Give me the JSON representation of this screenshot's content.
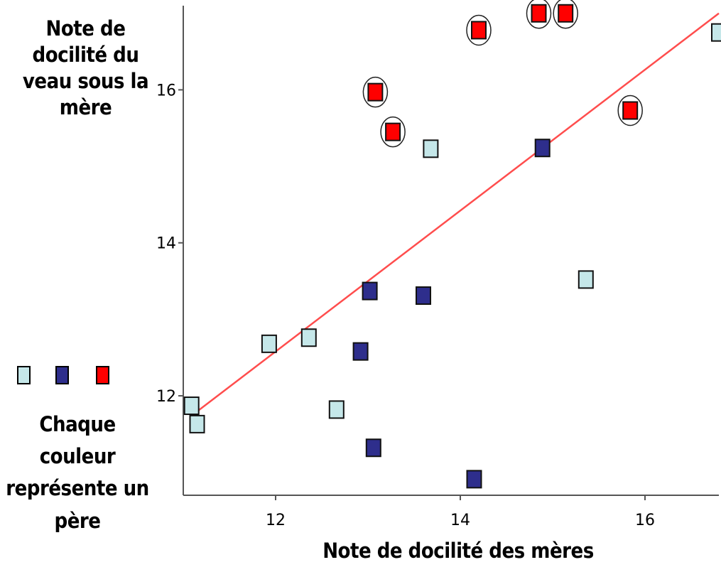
{
  "chart_data": {
    "type": "scatter",
    "xlabel": "Note de docilité des mères",
    "ylabel": "Note de docilité du veau sous la mère",
    "xlim": [
      11.0,
      16.8
    ],
    "ylim": [
      10.7,
      17.1
    ],
    "xticks": [
      12,
      14,
      16
    ],
    "yticks": [
      12,
      14,
      16
    ],
    "grid": false,
    "legend_placement": "left-bottom",
    "legend_text": "Chaque couleur représente un père",
    "trendline": {
      "type": "linear",
      "color": "#ff4d4d",
      "points": [
        [
          11.1,
          11.75
        ],
        [
          16.8,
          17.0
        ]
      ]
    },
    "series": [
      {
        "color": "#c5e7e9",
        "circled": false,
        "points": [
          [
            11.09,
            11.87
          ],
          [
            11.15,
            11.63
          ],
          [
            11.93,
            12.68
          ],
          [
            12.36,
            12.76
          ],
          [
            12.66,
            11.82
          ],
          [
            13.68,
            15.23
          ],
          [
            15.36,
            13.52
          ],
          [
            16.8,
            16.75
          ]
        ]
      },
      {
        "color": "#2e2e8c",
        "circled": false,
        "points": [
          [
            12.92,
            12.58
          ],
          [
            13.02,
            13.37
          ],
          [
            13.06,
            11.32
          ],
          [
            13.6,
            13.31
          ],
          [
            14.15,
            10.91
          ],
          [
            14.89,
            15.24
          ]
        ]
      },
      {
        "color": "#ff0000",
        "circled": true,
        "points": [
          [
            13.08,
            15.97
          ],
          [
            13.27,
            15.45
          ],
          [
            14.2,
            16.78
          ],
          [
            14.85,
            17.0
          ],
          [
            15.14,
            17.0
          ],
          [
            15.84,
            15.73
          ]
        ]
      }
    ]
  }
}
